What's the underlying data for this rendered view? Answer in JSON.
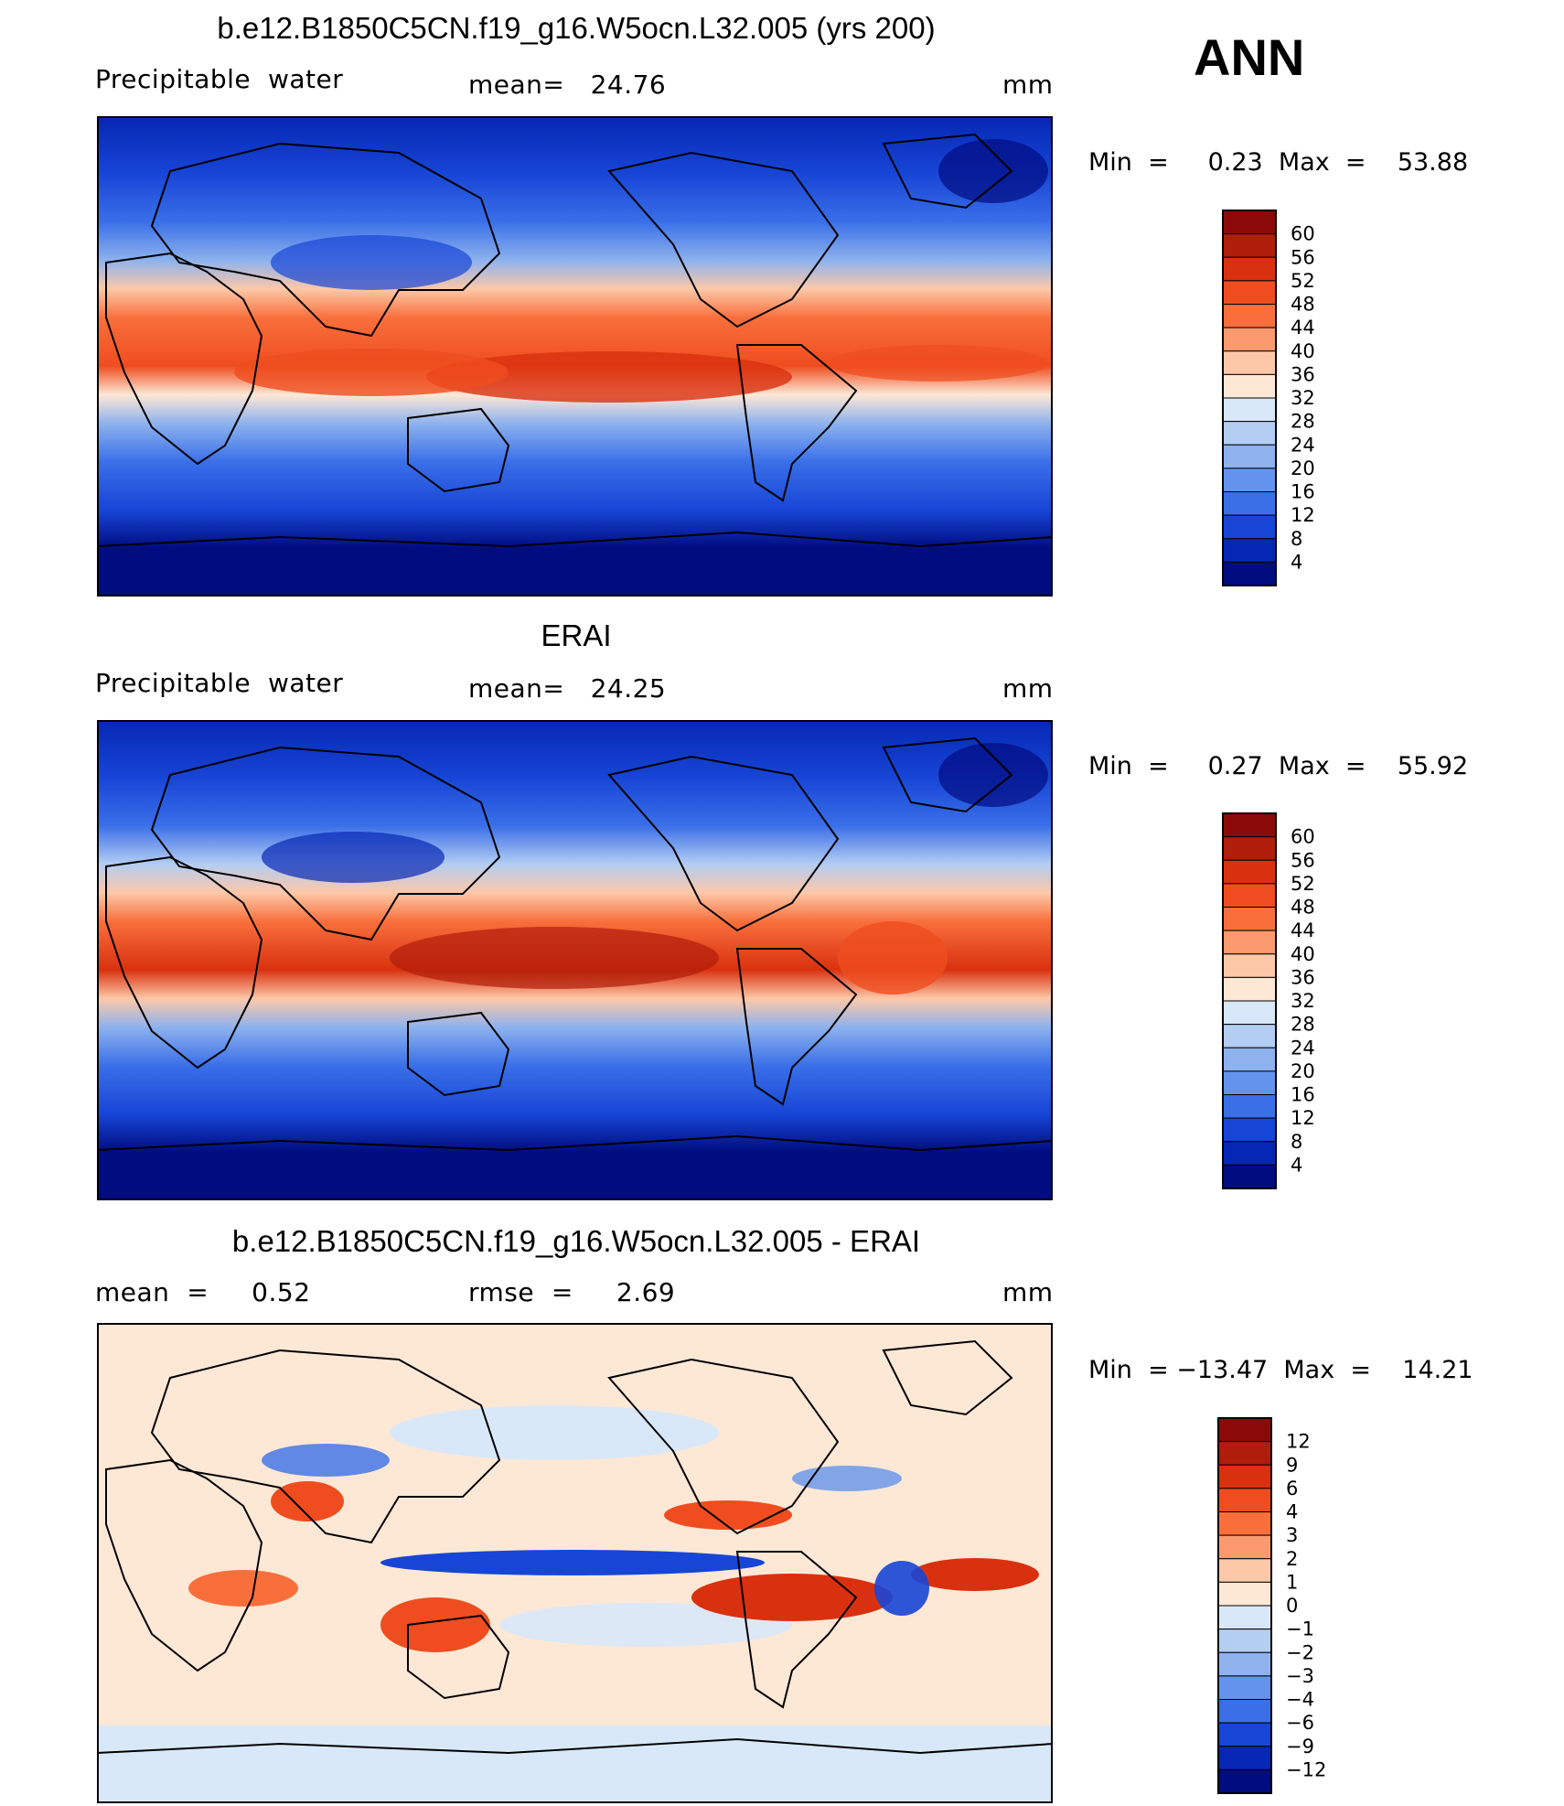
{
  "season": "ANN",
  "panels": [
    {
      "title": "b.e12.B1850C5CN.f19_g16.W5ocn.L32.005 (yrs 200)",
      "left_label": "Precipitable  water",
      "center_label": "mean=   24.76",
      "units": "mm",
      "minmax": "Min  =     0.23  Max  =    53.88",
      "colorbar": {
        "labels": [
          "60",
          "56",
          "52",
          "48",
          "44",
          "40",
          "36",
          "32",
          "28",
          "24",
          "20",
          "16",
          "12",
          "8",
          "4"
        ],
        "colors": [
          "#8b0a07",
          "#b01d0a",
          "#d9310f",
          "#ef4d1f",
          "#f96f3c",
          "#fb9a6f",
          "#fdc8a8",
          "#fde8d6",
          "#d8e8f8",
          "#b3cdf3",
          "#8db2ee",
          "#6393ec",
          "#3a6fe8",
          "#1745d6",
          "#0627b3",
          "#010c80"
        ]
      }
    },
    {
      "title": "ERAI",
      "left_label": "Precipitable  water",
      "center_label": "mean=   24.25",
      "units": "mm",
      "minmax": "Min  =     0.27  Max  =    55.92",
      "colorbar": {
        "labels": [
          "60",
          "56",
          "52",
          "48",
          "44",
          "40",
          "36",
          "32",
          "28",
          "24",
          "20",
          "16",
          "12",
          "8",
          "4"
        ],
        "colors": [
          "#8b0a07",
          "#b01d0a",
          "#d9310f",
          "#ef4d1f",
          "#f96f3c",
          "#fb9a6f",
          "#fdc8a8",
          "#fde8d6",
          "#d8e8f8",
          "#b3cdf3",
          "#8db2ee",
          "#6393ec",
          "#3a6fe8",
          "#1745d6",
          "#0627b3",
          "#010c80"
        ]
      }
    },
    {
      "title": "b.e12.B1850C5CN.f19_g16.W5ocn.L32.005 - ERAI",
      "left_label": "mean  =     0.52",
      "center_label": "rmse  =     2.69",
      "units": "mm",
      "minmax": "Min  = −13.47  Max  =    14.21",
      "colorbar": {
        "labels": [
          "12",
          "9",
          "6",
          "4",
          "3",
          "2",
          "1",
          "0",
          "−1",
          "−2",
          "−3",
          "−4",
          "−6",
          "−9",
          "−12"
        ],
        "colors": [
          "#8b0a07",
          "#b01d0a",
          "#d9310f",
          "#ef4d1f",
          "#f96f3c",
          "#fb9a6f",
          "#fdc8a8",
          "#fde8d6",
          "#d8e8f8",
          "#b3cdf3",
          "#8db2ee",
          "#6393ec",
          "#3a6fe8",
          "#1745d6",
          "#0627b3",
          "#010c80"
        ]
      }
    }
  ]
}
